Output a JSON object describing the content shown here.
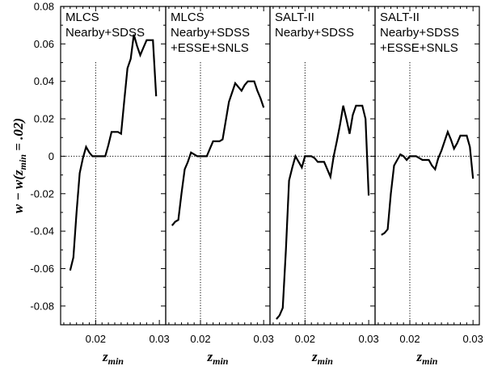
{
  "chart_data": {
    "type": "line",
    "ylabel_parts": {
      "pre": "w − w(z",
      "sub": "min",
      "post": " = .02)"
    },
    "xlabel_parts": {
      "main": "z",
      "sub": "min"
    },
    "ylim": [
      -0.09,
      0.08
    ],
    "yticks": [
      0.08,
      0.06,
      0.04,
      0.02,
      0,
      -0.02,
      -0.04,
      -0.06,
      -0.08
    ],
    "ytick_labels": [
      "0.08",
      "0.06",
      "0.04",
      "0.02",
      "0",
      "-0.02",
      "-0.04",
      "-0.06",
      "-0.08"
    ],
    "xlim": [
      0.0145,
      0.031
    ],
    "xticks": [
      0.02,
      0.03
    ],
    "xtick_labels": [
      "0.02",
      "0.03"
    ],
    "reference_lines": {
      "y": 0,
      "x": 0.02
    },
    "panels": [
      {
        "title_lines": [
          "MLCS",
          "Nearby+SDSS"
        ],
        "series": [
          {
            "x": [
              0.016,
              0.0165,
              0.017,
              0.0175,
              0.018,
              0.0185,
              0.019,
              0.0195,
              0.02,
              0.0205,
              0.021,
              0.0215,
              0.022,
              0.0225,
              0.023,
              0.0235,
              0.024,
              0.0245,
              0.025,
              0.0255,
              0.026,
              0.0265,
              0.027,
              0.0275,
              0.028,
              0.0285,
              0.029,
              0.0295
            ],
            "y": [
              -0.061,
              -0.054,
              -0.03,
              -0.009,
              -0.001,
              0.005,
              0.002,
              0,
              0,
              0,
              0,
              0,
              0.006,
              0.013,
              0.013,
              0.013,
              0.012,
              0.03,
              0.047,
              0.052,
              0.065,
              0.059,
              0.054,
              0.058,
              0.062,
              0.062,
              0.062,
              0.032
            ]
          }
        ]
      },
      {
        "title_lines": [
          "MLCS",
          "Nearby+SDSS",
          "+ESSE+SNLS"
        ],
        "series": [
          {
            "x": [
              0.0155,
              0.016,
              0.0165,
              0.017,
              0.0175,
              0.018,
              0.0185,
              0.019,
              0.0195,
              0.02,
              0.0205,
              0.021,
              0.0215,
              0.022,
              0.0225,
              0.023,
              0.0235,
              0.024,
              0.0245,
              0.025,
              0.0255,
              0.026,
              0.0265,
              0.027,
              0.0275,
              0.028,
              0.0285,
              0.029,
              0.0295,
              0.03
            ],
            "y": [
              -0.037,
              -0.035,
              -0.034,
              -0.02,
              -0.007,
              -0.003,
              0.002,
              0.001,
              0,
              0,
              0,
              0,
              0.004,
              0.008,
              0.008,
              0.008,
              0.009,
              0.019,
              0.029,
              0.034,
              0.039,
              0.037,
              0.035,
              0.038,
              0.04,
              0.04,
              0.04,
              0.035,
              0.031,
              0.026
            ]
          }
        ]
      },
      {
        "title_lines": [
          "SALT-II",
          "Nearby+SDSS"
        ],
        "series": [
          {
            "x": [
              0.0155,
              0.016,
              0.0165,
              0.017,
              0.0175,
              0.018,
              0.0185,
              0.019,
              0.0195,
              0.02,
              0.0205,
              0.021,
              0.0215,
              0.022,
              0.0225,
              0.023,
              0.0235,
              0.024,
              0.0245,
              0.025,
              0.0255,
              0.026,
              0.0265,
              0.027,
              0.0275,
              0.028,
              0.0285,
              0.029,
              0.0295,
              0.03
            ],
            "y": [
              -0.087,
              -0.085,
              -0.081,
              -0.05,
              -0.013,
              -0.006,
              0,
              -0.003,
              -0.006,
              0,
              0,
              0,
              -0.001,
              -0.003,
              -0.003,
              -0.003,
              -0.007,
              -0.011,
              0,
              0.008,
              0.017,
              0.027,
              0.02,
              0.012,
              0.022,
              0.027,
              0.027,
              0.027,
              0.02,
              -0.021
            ]
          }
        ]
      },
      {
        "title_lines": [
          "SALT-II",
          "Nearby+SDSS",
          "+ESSE+SNLS"
        ],
        "series": [
          {
            "x": [
              0.0155,
              0.016,
              0.0165,
              0.017,
              0.0175,
              0.018,
              0.0185,
              0.019,
              0.0195,
              0.02,
              0.0205,
              0.021,
              0.0215,
              0.022,
              0.0225,
              0.023,
              0.0235,
              0.024,
              0.0245,
              0.025,
              0.0255,
              0.026,
              0.0265,
              0.027,
              0.0275,
              0.028,
              0.0285,
              0.029,
              0.0295,
              0.03
            ],
            "y": [
              -0.042,
              -0.041,
              -0.039,
              -0.02,
              -0.005,
              -0.002,
              0.001,
              0,
              -0.002,
              0,
              0,
              0,
              -0.001,
              -0.002,
              -0.002,
              -0.002,
              -0.005,
              -0.007,
              -0.001,
              0.003,
              0.008,
              0.013,
              0.009,
              0.004,
              0.007,
              0.011,
              0.011,
              0.011,
              0.005,
              -0.012
            ]
          }
        ]
      }
    ]
  }
}
